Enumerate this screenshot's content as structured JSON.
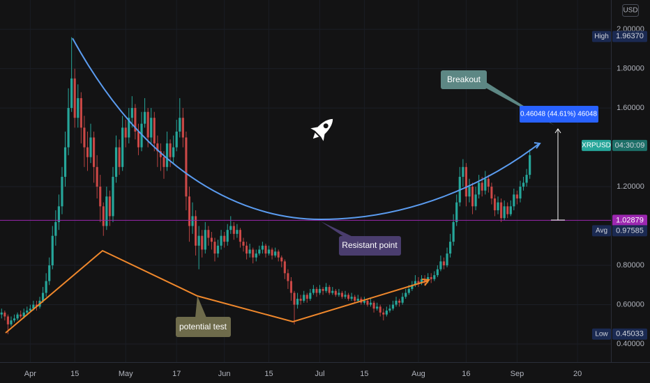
{
  "chart_data": {
    "type": "candlestick",
    "currency": "USD",
    "symbol": "XRPUSD",
    "countdown": "04:30:09",
    "up_color": "#26a69a",
    "down_color": "#ef5350",
    "ylim": [
      0.308,
      2.149
    ],
    "yticks": [
      {
        "value": 0.4,
        "label": "0.40000"
      },
      {
        "value": 0.6,
        "label": "0.60000"
      },
      {
        "value": 0.8,
        "label": "0.80000"
      },
      {
        "value": 1.2,
        "label": "1.20000"
      },
      {
        "value": 1.6,
        "label": "1.60000"
      },
      {
        "value": 1.8,
        "label": "1.80000"
      },
      {
        "value": 2.0,
        "label": "2.00000"
      }
    ],
    "levels": [
      {
        "name": "High",
        "value": 1.9637,
        "label": "1.96370"
      },
      {
        "name": "Avg",
        "value": 0.97585,
        "label": "0.97585"
      },
      {
        "name": "Low",
        "value": 0.45033,
        "label": "0.45033"
      }
    ],
    "last_level": {
      "value": 1.02879,
      "label": "1.02879"
    },
    "annotations": [
      "Breakout",
      "Resistant point",
      "potential test"
    ],
    "measure": "0.46048 (44.61%) 46048",
    "categories": [
      null,
      null,
      null,
      null,
      null,
      null,
      null,
      null,
      null,
      "Apr",
      null,
      null,
      null,
      null,
      null,
      null,
      null,
      null,
      null,
      null,
      null,
      null,
      null,
      "15",
      null,
      null,
      null,
      null,
      null,
      null,
      null,
      null,
      null,
      null,
      null,
      null,
      null,
      null,
      null,
      "May",
      null,
      null,
      null,
      null,
      null,
      null,
      null,
      null,
      null,
      null,
      null,
      null,
      null,
      null,
      null,
      "17",
      null,
      null,
      null,
      null,
      null,
      null,
      null,
      null,
      null,
      null,
      null,
      null,
      null,
      null,
      "Jun",
      null,
      null,
      null,
      null,
      null,
      null,
      null,
      null,
      null,
      null,
      null,
      null,
      null,
      "15",
      null,
      null,
      null,
      null,
      null,
      null,
      null,
      null,
      null,
      null,
      null,
      null,
      null,
      null,
      null,
      "Jul",
      null,
      null,
      null,
      null,
      null,
      null,
      null,
      null,
      null,
      null,
      null,
      null,
      null,
      "15",
      null,
      null,
      null,
      null,
      null,
      null,
      null,
      null,
      null,
      null,
      null,
      null,
      null,
      null,
      null,
      null,
      "Aug",
      null,
      null,
      null,
      null,
      null,
      null,
      null,
      null,
      null,
      null,
      null,
      null,
      null,
      null,
      "16",
      null,
      null,
      null,
      null,
      null,
      null,
      null,
      null,
      null,
      null,
      null,
      null,
      null,
      null,
      null,
      "Sep",
      null,
      null,
      null,
      null,
      null,
      null,
      null,
      null,
      null,
      null,
      null,
      null,
      null,
      null,
      null,
      null,
      null,
      null,
      "20",
      null,
      null,
      null,
      null,
      null,
      null,
      null,
      null,
      null,
      null
    ],
    "candles": [
      [
        0.55,
        0.58,
        0.53,
        0.56
      ],
      [
        0.56,
        0.57,
        0.52,
        0.54
      ],
      [
        0.54,
        0.55,
        0.45,
        0.5
      ],
      [
        0.5,
        0.54,
        0.49,
        0.52
      ],
      [
        0.52,
        0.55,
        0.51,
        0.53
      ],
      [
        0.53,
        0.56,
        0.52,
        0.55
      ],
      [
        0.55,
        0.57,
        0.53,
        0.54
      ],
      [
        0.54,
        0.58,
        0.53,
        0.56
      ],
      [
        0.56,
        0.59,
        0.55,
        0.57
      ],
      [
        0.57,
        0.6,
        0.56,
        0.58
      ],
      [
        0.58,
        0.62,
        0.57,
        0.6
      ],
      [
        0.6,
        0.62,
        0.57,
        0.59
      ],
      [
        0.59,
        0.64,
        0.58,
        0.62
      ],
      [
        0.62,
        0.69,
        0.61,
        0.66
      ],
      [
        0.66,
        0.76,
        0.64,
        0.72
      ],
      [
        0.72,
        0.84,
        0.7,
        0.8
      ],
      [
        0.8,
        1.0,
        0.78,
        0.95
      ],
      [
        0.95,
        1.08,
        0.9,
        1.02
      ],
      [
        1.02,
        1.16,
        0.98,
        1.1
      ],
      [
        1.1,
        1.3,
        1.06,
        1.25
      ],
      [
        1.25,
        1.48,
        1.2,
        1.4
      ],
      [
        1.4,
        1.7,
        1.36,
        1.6
      ],
      [
        1.6,
        1.96,
        1.58,
        1.75
      ],
      [
        1.75,
        1.8,
        1.5,
        1.55
      ],
      [
        1.55,
        1.72,
        1.5,
        1.65
      ],
      [
        1.65,
        1.68,
        1.42,
        1.5
      ],
      [
        1.5,
        1.56,
        1.3,
        1.4
      ],
      [
        1.4,
        1.48,
        1.28,
        1.35
      ],
      [
        1.35,
        1.52,
        1.32,
        1.45
      ],
      [
        1.45,
        1.48,
        1.22,
        1.3
      ],
      [
        1.3,
        1.36,
        1.14,
        1.2
      ],
      [
        1.2,
        1.26,
        1.02,
        1.1
      ],
      [
        1.1,
        1.12,
        0.95,
        1.0
      ],
      [
        1.0,
        1.2,
        0.98,
        1.15
      ],
      [
        1.15,
        1.18,
        1.0,
        1.05
      ],
      [
        1.05,
        1.3,
        1.02,
        1.25
      ],
      [
        1.25,
        1.46,
        1.22,
        1.4
      ],
      [
        1.4,
        1.44,
        1.26,
        1.3
      ],
      [
        1.3,
        1.56,
        1.28,
        1.5
      ],
      [
        1.5,
        1.54,
        1.4,
        1.45
      ],
      [
        1.45,
        1.6,
        1.42,
        1.55
      ],
      [
        1.55,
        1.66,
        1.5,
        1.6
      ],
      [
        1.6,
        1.62,
        1.44,
        1.48
      ],
      [
        1.48,
        1.52,
        1.36,
        1.4
      ],
      [
        1.4,
        1.58,
        1.38,
        1.52
      ],
      [
        1.52,
        1.65,
        1.5,
        1.58
      ],
      [
        1.58,
        1.6,
        1.4,
        1.45
      ],
      [
        1.45,
        1.6,
        1.42,
        1.55
      ],
      [
        1.55,
        1.58,
        1.38,
        1.42
      ],
      [
        1.42,
        1.46,
        1.3,
        1.38
      ],
      [
        1.38,
        1.42,
        1.28,
        1.35
      ],
      [
        1.35,
        1.38,
        1.24,
        1.3
      ],
      [
        1.3,
        1.48,
        1.28,
        1.42
      ],
      [
        1.42,
        1.44,
        1.3,
        1.35
      ],
      [
        1.35,
        1.46,
        1.32,
        1.4
      ],
      [
        1.4,
        1.54,
        1.38,
        1.48
      ],
      [
        1.48,
        1.65,
        1.45,
        1.55
      ],
      [
        1.55,
        1.6,
        1.4,
        1.45
      ],
      [
        1.45,
        1.48,
        1.08,
        1.15
      ],
      [
        1.15,
        1.2,
        0.92,
        1.0
      ],
      [
        1.0,
        1.12,
        0.96,
        1.05
      ],
      [
        1.05,
        1.08,
        0.85,
        0.9
      ],
      [
        0.9,
        1.0,
        0.78,
        0.95
      ],
      [
        0.95,
        0.98,
        0.84,
        0.88
      ],
      [
        0.88,
        1.02,
        0.86,
        0.98
      ],
      [
        0.98,
        1.0,
        0.9,
        0.94
      ],
      [
        0.94,
        0.97,
        0.88,
        0.92
      ],
      [
        0.92,
        0.94,
        0.82,
        0.86
      ],
      [
        0.86,
        0.93,
        0.84,
        0.9
      ],
      [
        0.9,
        0.98,
        0.88,
        0.95
      ],
      [
        0.95,
        0.97,
        0.89,
        0.92
      ],
      [
        0.92,
        1.01,
        0.9,
        0.98
      ],
      [
        0.98,
        1.05,
        0.96,
        1.0
      ],
      [
        1.0,
        1.02,
        0.93,
        0.96
      ],
      [
        0.96,
        1.01,
        0.94,
        0.98
      ],
      [
        0.98,
        0.99,
        0.89,
        0.92
      ],
      [
        0.92,
        0.94,
        0.87,
        0.9
      ],
      [
        0.9,
        0.92,
        0.83,
        0.86
      ],
      [
        0.86,
        0.91,
        0.84,
        0.88
      ],
      [
        0.88,
        0.89,
        0.81,
        0.84
      ],
      [
        0.84,
        0.88,
        0.82,
        0.86
      ],
      [
        0.86,
        0.9,
        0.85,
        0.88
      ],
      [
        0.88,
        0.92,
        0.86,
        0.9
      ],
      [
        0.9,
        0.91,
        0.84,
        0.86
      ],
      [
        0.86,
        0.9,
        0.85,
        0.88
      ],
      [
        0.88,
        0.89,
        0.83,
        0.85
      ],
      [
        0.85,
        0.89,
        0.84,
        0.87
      ],
      [
        0.87,
        0.88,
        0.82,
        0.84
      ],
      [
        0.84,
        0.85,
        0.79,
        0.82
      ],
      [
        0.82,
        0.83,
        0.73,
        0.76
      ],
      [
        0.76,
        0.78,
        0.68,
        0.72
      ],
      [
        0.72,
        0.74,
        0.62,
        0.66
      ],
      [
        0.66,
        0.67,
        0.5,
        0.6
      ],
      [
        0.6,
        0.66,
        0.58,
        0.63
      ],
      [
        0.63,
        0.65,
        0.6,
        0.62
      ],
      [
        0.62,
        0.67,
        0.61,
        0.65
      ],
      [
        0.65,
        0.66,
        0.61,
        0.63
      ],
      [
        0.63,
        0.68,
        0.62,
        0.66
      ],
      [
        0.66,
        0.7,
        0.65,
        0.68
      ],
      [
        0.68,
        0.69,
        0.64,
        0.66
      ],
      [
        0.66,
        0.7,
        0.65,
        0.68
      ],
      [
        0.68,
        0.69,
        0.65,
        0.67
      ],
      [
        0.67,
        0.71,
        0.66,
        0.69
      ],
      [
        0.69,
        0.7,
        0.65,
        0.66
      ],
      [
        0.66,
        0.69,
        0.65,
        0.67
      ],
      [
        0.67,
        0.68,
        0.64,
        0.65
      ],
      [
        0.65,
        0.68,
        0.64,
        0.66
      ],
      [
        0.66,
        0.67,
        0.63,
        0.64
      ],
      [
        0.64,
        0.67,
        0.63,
        0.65
      ],
      [
        0.65,
        0.66,
        0.62,
        0.63
      ],
      [
        0.63,
        0.66,
        0.62,
        0.64
      ],
      [
        0.64,
        0.65,
        0.61,
        0.62
      ],
      [
        0.62,
        0.65,
        0.61,
        0.63
      ],
      [
        0.63,
        0.64,
        0.6,
        0.61
      ],
      [
        0.61,
        0.64,
        0.6,
        0.62
      ],
      [
        0.62,
        0.63,
        0.59,
        0.6
      ],
      [
        0.6,
        0.63,
        0.59,
        0.61
      ],
      [
        0.61,
        0.62,
        0.56,
        0.58
      ],
      [
        0.58,
        0.61,
        0.57,
        0.59
      ],
      [
        0.59,
        0.6,
        0.54,
        0.56
      ],
      [
        0.56,
        0.58,
        0.52,
        0.55
      ],
      [
        0.55,
        0.59,
        0.54,
        0.57
      ],
      [
        0.57,
        0.6,
        0.56,
        0.58
      ],
      [
        0.58,
        0.62,
        0.57,
        0.6
      ],
      [
        0.6,
        0.64,
        0.59,
        0.62
      ],
      [
        0.62,
        0.63,
        0.59,
        0.61
      ],
      [
        0.61,
        0.66,
        0.6,
        0.64
      ],
      [
        0.64,
        0.68,
        0.63,
        0.66
      ],
      [
        0.66,
        0.7,
        0.65,
        0.68
      ],
      [
        0.68,
        0.72,
        0.67,
        0.7
      ],
      [
        0.7,
        0.75,
        0.69,
        0.72
      ],
      [
        0.72,
        0.74,
        0.69,
        0.71
      ],
      [
        0.71,
        0.75,
        0.7,
        0.73
      ],
      [
        0.73,
        0.75,
        0.7,
        0.72
      ],
      [
        0.72,
        0.76,
        0.71,
        0.74
      ],
      [
        0.74,
        0.76,
        0.71,
        0.73
      ],
      [
        0.73,
        0.77,
        0.72,
        0.75
      ],
      [
        0.75,
        0.8,
        0.74,
        0.78
      ],
      [
        0.78,
        0.85,
        0.77,
        0.82
      ],
      [
        0.82,
        0.84,
        0.78,
        0.8
      ],
      [
        0.8,
        0.89,
        0.79,
        0.86
      ],
      [
        0.86,
        0.96,
        0.84,
        0.92
      ],
      [
        0.92,
        1.06,
        0.9,
        1.02
      ],
      [
        1.02,
        1.16,
        1.0,
        1.12
      ],
      [
        1.12,
        1.3,
        1.1,
        1.25
      ],
      [
        1.25,
        1.34,
        1.2,
        1.3
      ],
      [
        1.3,
        1.32,
        1.1,
        1.15
      ],
      [
        1.15,
        1.24,
        1.12,
        1.2
      ],
      [
        1.2,
        1.22,
        1.06,
        1.1
      ],
      [
        1.1,
        1.2,
        1.08,
        1.16
      ],
      [
        1.16,
        1.26,
        1.14,
        1.22
      ],
      [
        1.22,
        1.25,
        1.15,
        1.18
      ],
      [
        1.18,
        1.28,
        1.16,
        1.24
      ],
      [
        1.24,
        1.26,
        1.17,
        1.2
      ],
      [
        1.2,
        1.22,
        1.11,
        1.14
      ],
      [
        1.14,
        1.16,
        1.05,
        1.08
      ],
      [
        1.08,
        1.15,
        1.06,
        1.12
      ],
      [
        1.12,
        1.14,
        1.02,
        1.04
      ],
      [
        1.04,
        1.13,
        1.03,
        1.1
      ],
      [
        1.1,
        1.12,
        1.04,
        1.06
      ],
      [
        1.06,
        1.13,
        1.05,
        1.1
      ],
      [
        1.1,
        1.19,
        1.08,
        1.16
      ],
      [
        1.16,
        1.18,
        1.11,
        1.14
      ],
      [
        1.14,
        1.23,
        1.12,
        1.2
      ],
      [
        1.2,
        1.25,
        1.18,
        1.22
      ],
      [
        1.22,
        1.29,
        1.2,
        1.26
      ],
      [
        1.26,
        1.39,
        1.24,
        1.36
      ],
      null,
      null,
      null,
      null,
      null,
      null,
      null,
      null,
      null,
      null,
      null,
      null,
      null,
      null,
      null,
      null,
      null,
      null,
      null,
      null,
      null,
      null,
      null,
      null,
      null
    ]
  }
}
